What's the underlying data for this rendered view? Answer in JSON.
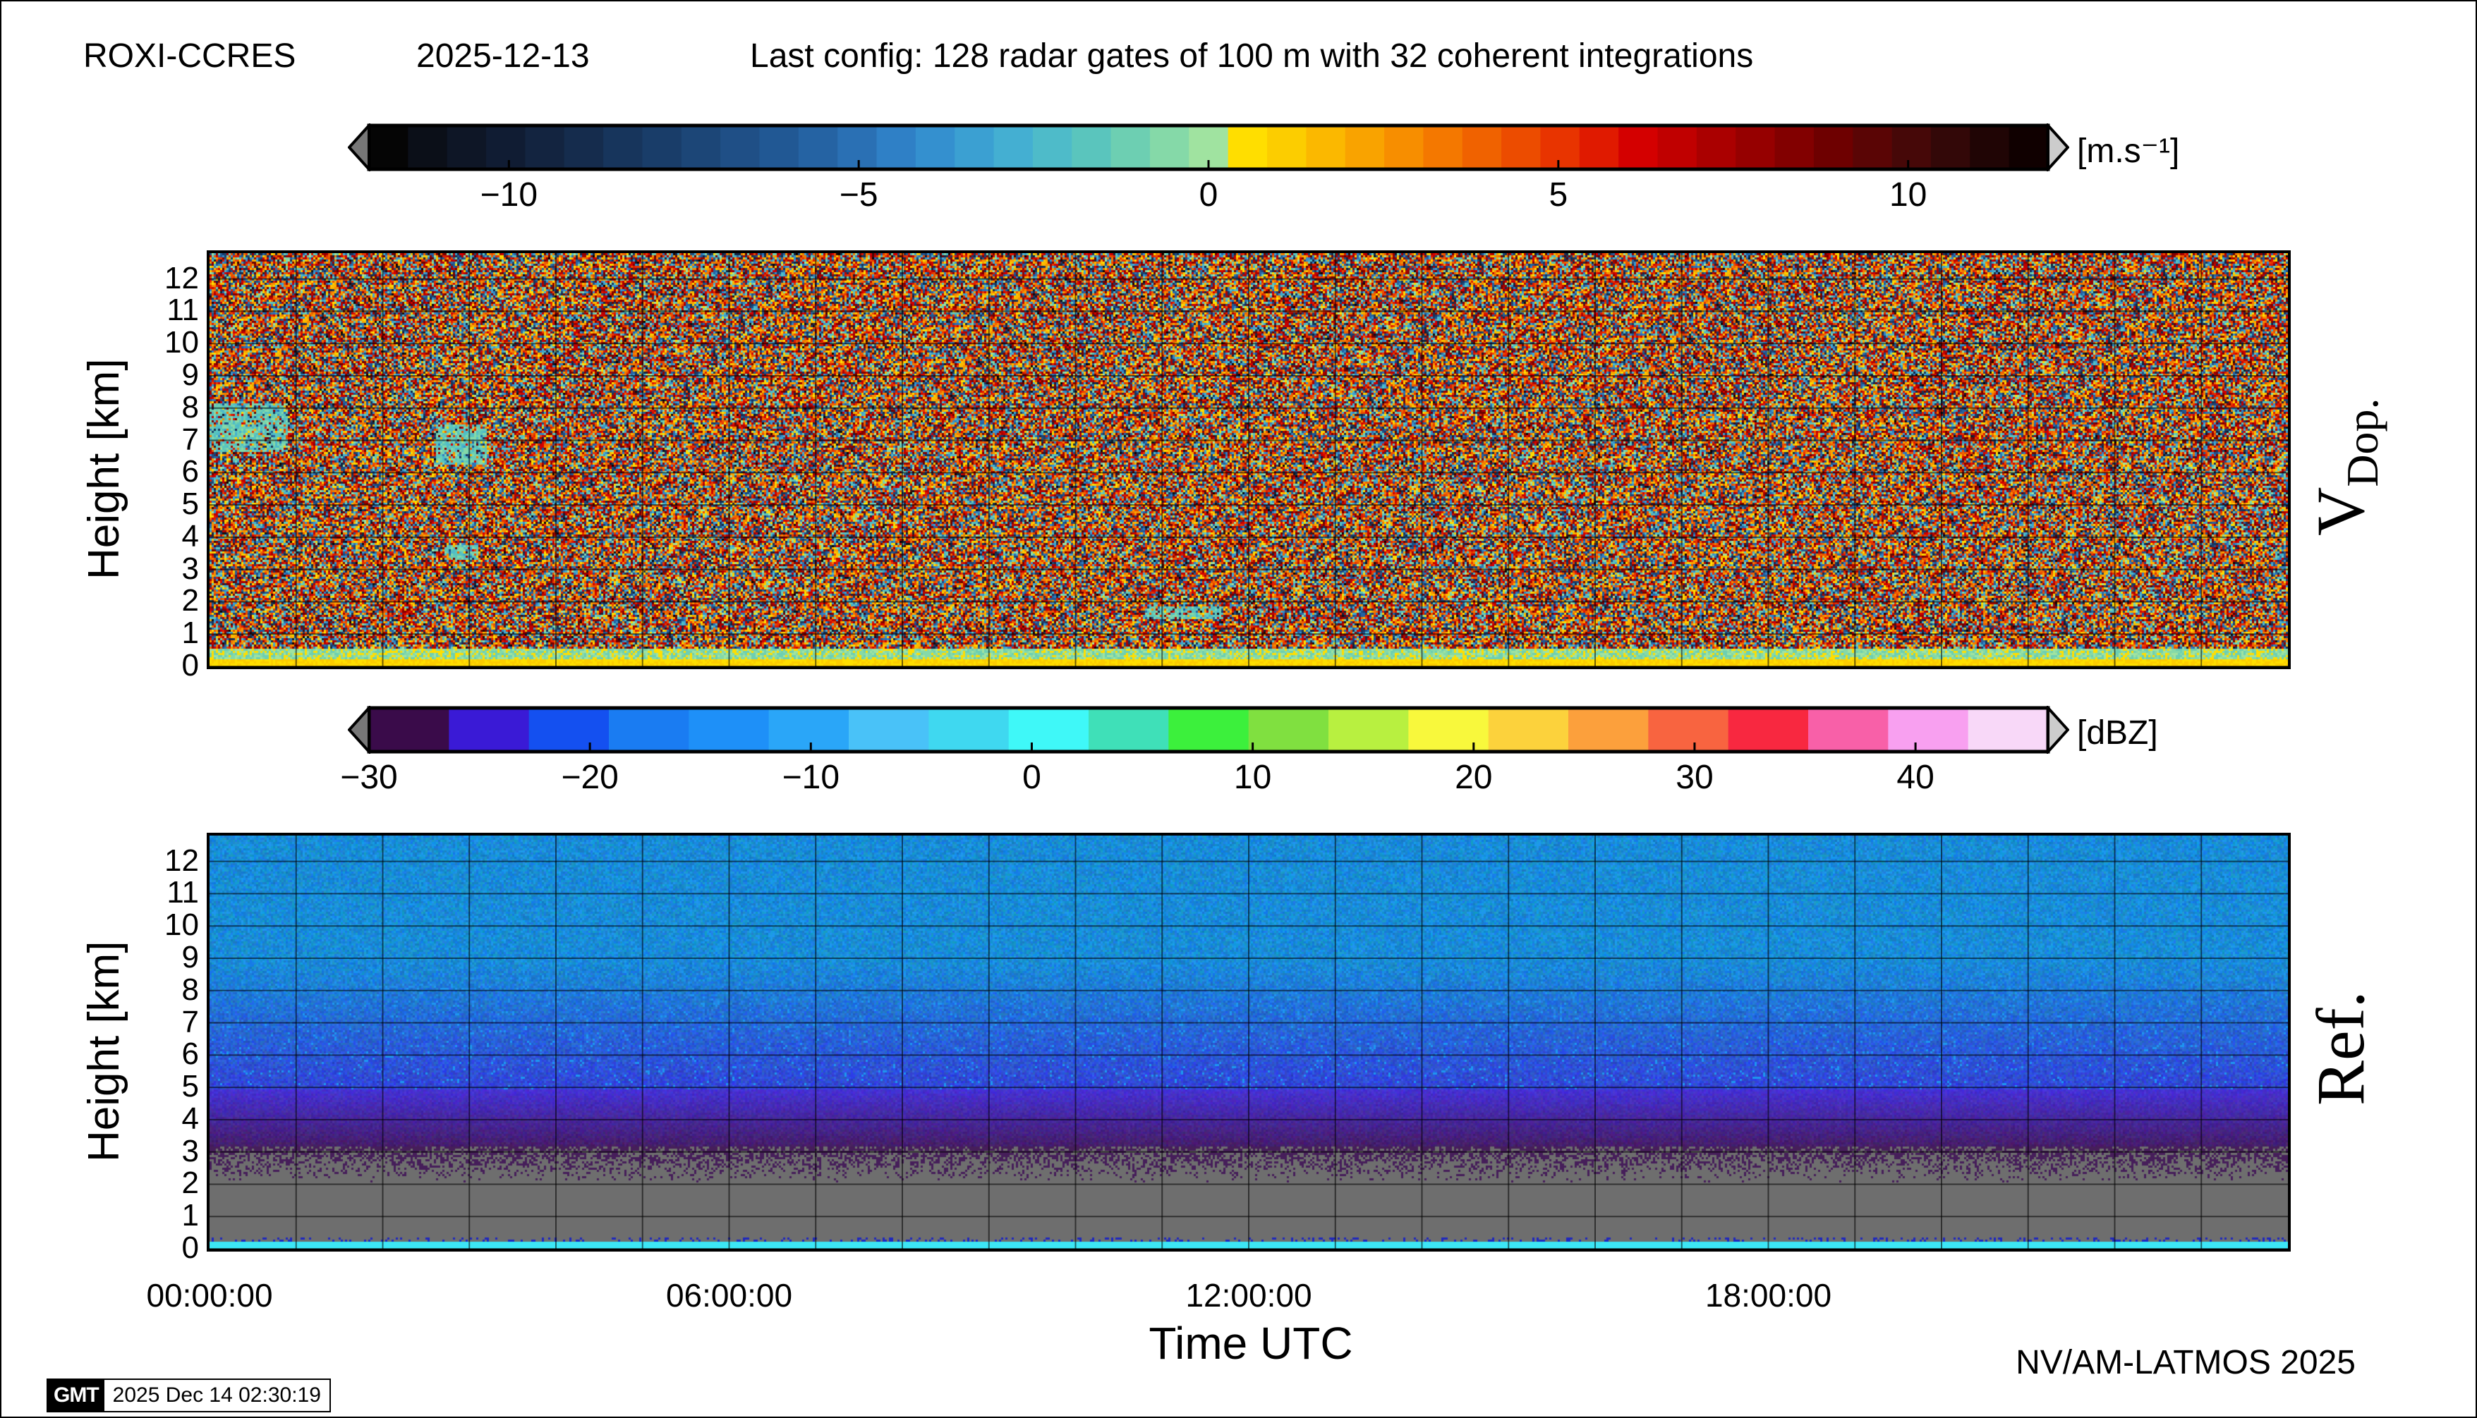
{
  "header": {
    "station": "ROXI-CCRES",
    "date": "2025-12-13",
    "config": "Last config: 128 radar gates of 100 m with 32 coherent integrations"
  },
  "footer": {
    "credit": "NV/AM-LATMOS 2025",
    "gmt_logo": "GMT",
    "timestamp": "2025 Dec 14 02:30:19"
  },
  "chart_data": [
    {
      "type": "heatmap",
      "name_label": "V",
      "name_sub": "Dop.",
      "ylabel": "Height [km]",
      "ylim": [
        0,
        12.8
      ],
      "y_ticks": [
        "0",
        "1",
        "2",
        "3",
        "4",
        "5",
        "6",
        "7",
        "8",
        "9",
        "10",
        "11",
        "12"
      ],
      "x_ticks": [],
      "grid": true,
      "colorbar": {
        "unit": "[m.s⁻¹]",
        "range": [
          -12,
          12
        ],
        "ticks": [
          {
            "value": -10,
            "label": "−10"
          },
          {
            "value": -5,
            "label": "−5"
          },
          {
            "value": 0,
            "label": "0"
          },
          {
            "value": 5,
            "label": "5"
          },
          {
            "value": 10,
            "label": "10"
          }
        ],
        "colors": [
          "#050505",
          "#0b0f18",
          "#0e1626",
          "#101c33",
          "#132440",
          "#152c4d",
          "#17355c",
          "#193d69",
          "#1c4677",
          "#1f4f86",
          "#215894",
          "#2563a3",
          "#2a70b4",
          "#2f80c6",
          "#3490cf",
          "#3ba0d2",
          "#44afd2",
          "#4ebbc9",
          "#5ac5bd",
          "#6dcfb2",
          "#85d9a8",
          "#a0e3a0",
          "#ffde00",
          "#fccd00",
          "#fbb800",
          "#f9a300",
          "#f78e00",
          "#f47800",
          "#f06200",
          "#ec4c00",
          "#e83400",
          "#e01a00",
          "#d40000",
          "#c00000",
          "#aa0000",
          "#960000",
          "#820000",
          "#6e0000",
          "#5a0505",
          "#460808",
          "#330808",
          "#200505",
          "#100000"
        ]
      },
      "description": "Doppler velocity; noise-dominated field with a near-zero (yellow/green) band below ~0.5 km and weak features near 7-8 km early in the day"
    },
    {
      "type": "heatmap",
      "name_label": "Ref.",
      "ylabel": "Height [km]",
      "ylim": [
        0,
        12.8
      ],
      "y_ticks": [
        "0",
        "1",
        "2",
        "3",
        "4",
        "5",
        "6",
        "7",
        "8",
        "9",
        "10",
        "11",
        "12"
      ],
      "xlabel": "Time UTC",
      "x_ticks": [
        {
          "hours": 0,
          "label": "00:00:00"
        },
        {
          "hours": 6,
          "label": "06:00:00"
        },
        {
          "hours": 12,
          "label": "12:00:00"
        },
        {
          "hours": 18,
          "label": "18:00:00"
        }
      ],
      "xlim_hours": [
        0,
        24
      ],
      "grid": true,
      "colorbar": {
        "unit": "[dBZ]",
        "range": [
          -30,
          46
        ],
        "ticks": [
          {
            "value": -30,
            "label": "−30"
          },
          {
            "value": -20,
            "label": "−20"
          },
          {
            "value": -10,
            "label": "−10"
          },
          {
            "value": 0,
            "label": "0"
          },
          {
            "value": 10,
            "label": "10"
          },
          {
            "value": 20,
            "label": "20"
          },
          {
            "value": 30,
            "label": "30"
          },
          {
            "value": 40,
            "label": "40"
          }
        ],
        "colors": [
          "#3a0b4a",
          "#3a1ad6",
          "#1450f0",
          "#1a7cf2",
          "#1e90f8",
          "#2aa6f8",
          "#49c2f8",
          "#3fd8f0",
          "#3ff8f8",
          "#3fe0b8",
          "#3cf03c",
          "#80e040",
          "#b8f040",
          "#f8f83c",
          "#fcd23c",
          "#fca03c",
          "#f86440",
          "#f82840",
          "#f860a8",
          "#f8a0f0",
          "#f8d8f8"
        ]
      },
      "description": "Reflectivity; blue background noise (~-20 dBZ) above ~4 km, purple 3-4 km, grey (no signal) 0.5-2.5 km, cyan surface layer at lowest gates"
    }
  ]
}
